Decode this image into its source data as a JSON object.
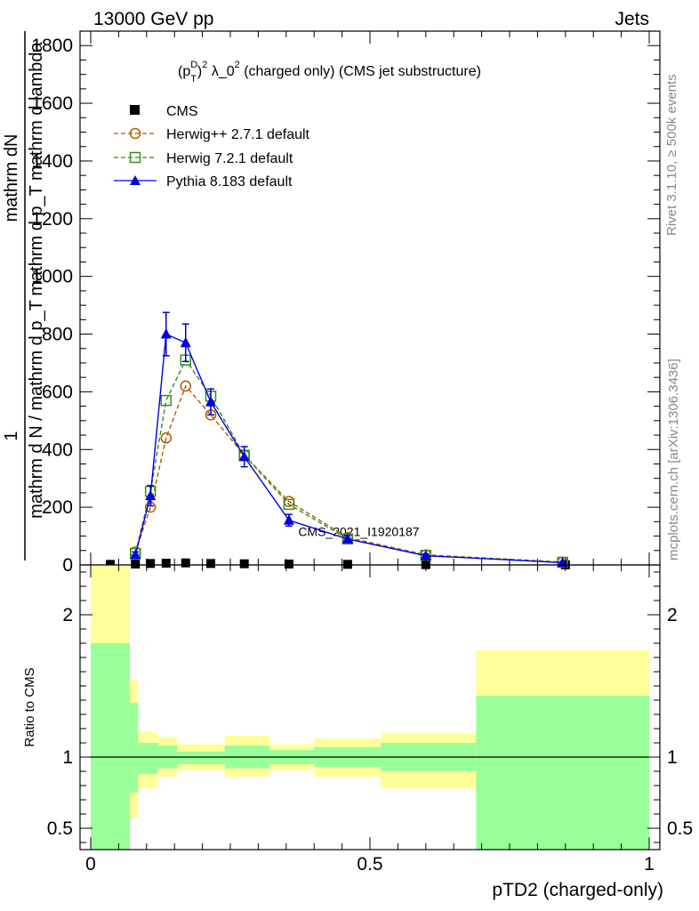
{
  "header": {
    "left": "13000 GeV pp",
    "right": "Jets"
  },
  "side_text": {
    "rivet": "Rivet 3.1.10, ≥ 500k events",
    "mcplots": "mcplots.cern.ch [arXiv:1306.3436]"
  },
  "chart_data": [
    {
      "type": "line",
      "panel": "main",
      "title_parts": {
        "p": "(p",
        "sup_d": "D",
        "sub_t": "T",
        "close": ")",
        "sup_2": "2",
        "lam": " λ_0",
        "sup_2b": "2",
        "rest": " (charged only) (CMS jet substructure)"
      },
      "ylabel_lines": [
        "1",
        "mathrm d N / mathrm d p_T",
        "mathrm dN",
        "mathrm d p_T mathrm d lambda"
      ],
      "watermark": "CMS_2021_I1920187",
      "xlim": [
        0,
        1
      ],
      "ylim": [
        0,
        1850
      ],
      "yticks": [
        0,
        200,
        400,
        600,
        800,
        1000,
        1200,
        1400,
        1600,
        1800
      ],
      "yticklabels": [
        "0",
        "200",
        "400",
        "600",
        "800",
        "1000",
        "1200",
        "1400",
        "1600",
        "1800"
      ],
      "legend_position": "top-left",
      "series": [
        {
          "name": "CMS",
          "style": "data",
          "color": "#000000",
          "x": [
            0.035,
            0.08,
            0.107,
            0.135,
            0.17,
            0.215,
            0.275,
            0.355,
            0.46,
            0.6,
            0.85
          ],
          "y": [
            2,
            3,
            5,
            6,
            7,
            5,
            4,
            3,
            2,
            1,
            0.5
          ]
        },
        {
          "name": "Herwig++ 2.7.1 default",
          "style": "circle-dashed",
          "color": "#b35900",
          "x": [
            0.08,
            0.107,
            0.135,
            0.17,
            0.215,
            0.275,
            0.355,
            0.46,
            0.6,
            0.845
          ],
          "y": [
            45,
            200,
            440,
            620,
            520,
            380,
            220,
            95,
            35,
            10
          ]
        },
        {
          "name": "Herwig 7.2.1 default",
          "style": "square-dashed",
          "color": "#3a8c1e",
          "x": [
            0.08,
            0.107,
            0.135,
            0.17,
            0.215,
            0.275,
            0.355,
            0.46,
            0.6,
            0.845
          ],
          "y": [
            40,
            255,
            570,
            710,
            585,
            380,
            210,
            90,
            33,
            9
          ]
        },
        {
          "name": "Pythia 8.183 default",
          "style": "triangle-solid",
          "color": "#0000e0",
          "x": [
            0.08,
            0.107,
            0.135,
            0.17,
            0.215,
            0.275,
            0.355,
            0.46,
            0.6,
            0.845
          ],
          "y": [
            35,
            240,
            800,
            770,
            565,
            375,
            155,
            90,
            32,
            8
          ],
          "err": [
            10,
            35,
            75,
            65,
            45,
            35,
            20,
            12,
            6,
            3
          ]
        }
      ]
    },
    {
      "type": "area",
      "panel": "ratio",
      "ylabel": "Ratio to CMS",
      "xlabel": "pTD2 (charged-only)",
      "xlim": [
        0,
        1
      ],
      "ylim": [
        0.35,
        2.35
      ],
      "xticks": [
        0,
        0.5,
        1
      ],
      "xticklabels": [
        "0",
        "0.5",
        "1"
      ],
      "yticks": [
        0.5,
        1,
        2
      ],
      "yticklabels": [
        "0.5",
        "1",
        "2"
      ],
      "reference_line": 1,
      "bins": [
        0,
        0.07,
        0.085,
        0.12,
        0.155,
        0.24,
        0.32,
        0.4,
        0.52,
        0.69,
        1.0
      ],
      "band_inner_color": "#99ff99",
      "band_outer_color": "#ffff99",
      "inner_up": [
        1.8,
        1.38,
        1.1,
        1.08,
        1.04,
        1.08,
        1.05,
        1.07,
        1.1,
        1.43
      ],
      "inner_low": [
        0.3,
        0.75,
        0.88,
        0.92,
        0.95,
        0.92,
        0.95,
        0.93,
        0.9,
        0.3
      ],
      "outer_up": [
        2.4,
        1.54,
        1.18,
        1.14,
        1.09,
        1.15,
        1.09,
        1.13,
        1.17,
        1.75
      ],
      "outer_low": [
        0.3,
        0.57,
        0.78,
        0.86,
        0.91,
        0.86,
        0.91,
        0.86,
        0.78,
        0.3
      ]
    }
  ]
}
